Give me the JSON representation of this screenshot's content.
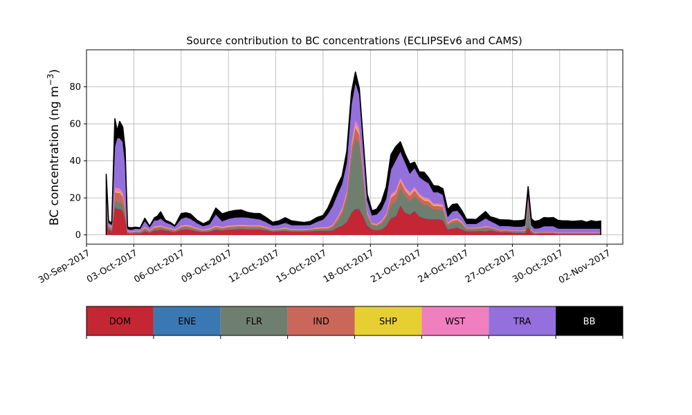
{
  "chart_data": {
    "type": "area",
    "stacked": true,
    "title": "Source contribution to BC concentrations (ECLIPSEv6 and CAMS)",
    "ylabel_main": "BC concentration (ng m",
    "ylabel_sup": "−3",
    "ylabel_close": ")",
    "xlabel": "",
    "grid": true,
    "xlim": [
      0,
      34
    ],
    "ylim": [
      -5,
      100
    ],
    "x_start_date": "30-Sep-2017",
    "xtick_values": [
      0,
      3,
      6,
      9,
      12,
      15,
      18,
      21,
      24,
      27,
      30,
      33
    ],
    "xtick_labels": [
      "30-Sep-2017",
      "03-Oct-2017",
      "06-Oct-2017",
      "09-Oct-2017",
      "12-Oct-2017",
      "15-Oct-2017",
      "18-Oct-2017",
      "21-Oct-2017",
      "24-Oct-2017",
      "27-Oct-2017",
      "30-Oct-2017",
      "02-Nov-2017"
    ],
    "ytick_values": [
      0,
      20,
      40,
      60,
      80
    ],
    "ytick_labels": [
      "0",
      "20",
      "40",
      "60",
      "80"
    ],
    "x": [
      1.25,
      1.4,
      1.6,
      1.8,
      1.95,
      2.1,
      2.3,
      2.45,
      2.6,
      2.75,
      2.9,
      3.1,
      3.4,
      3.7,
      4.0,
      4.3,
      4.5,
      4.7,
      5.0,
      5.3,
      5.6,
      6.0,
      6.3,
      6.6,
      7.0,
      7.4,
      7.8,
      8.2,
      8.6,
      9.0,
      9.4,
      9.8,
      10.2,
      10.6,
      11.0,
      11.4,
      11.8,
      12.2,
      12.6,
      13.0,
      13.4,
      13.8,
      14.2,
      14.6,
      15.0,
      15.3,
      15.6,
      15.9,
      16.2,
      16.5,
      16.8,
      17.05,
      17.3,
      17.55,
      17.8,
      18.1,
      18.4,
      18.7,
      19.0,
      19.3,
      19.6,
      19.9,
      20.2,
      20.5,
      20.8,
      21.1,
      21.4,
      21.7,
      22.0,
      22.3,
      22.6,
      22.9,
      23.2,
      23.5,
      23.8,
      24.1,
      24.4,
      24.7,
      25.0,
      25.3,
      25.6,
      25.9,
      26.2,
      26.5,
      26.8,
      27.1,
      27.4,
      27.6,
      27.8,
      28.0,
      28.2,
      28.4,
      28.7,
      29.0,
      29.3,
      29.6,
      29.9,
      30.2,
      30.5,
      30.8,
      31.1,
      31.4,
      31.7,
      32.0,
      32.3,
      32.6
    ],
    "series": [
      {
        "name": "DOM",
        "color": "#c42733",
        "values": [
          10,
          3,
          2,
          15,
          14,
          14,
          13,
          9,
          0.8,
          0.6,
          0.6,
          0.8,
          0.8,
          2,
          1.2,
          2.5,
          2.5,
          2.8,
          2.5,
          2,
          1.5,
          2.8,
          3,
          2.8,
          2,
          1.5,
          1.8,
          2.8,
          2.5,
          2.8,
          3,
          3.2,
          3,
          3,
          3,
          2.5,
          1.8,
          2,
          2.2,
          1.8,
          1.8,
          1.8,
          2,
          2.2,
          2.2,
          2.2,
          2.5,
          4,
          5,
          7,
          12,
          14,
          14,
          10,
          5,
          3,
          2.5,
          3,
          5,
          9,
          10,
          16,
          12,
          11,
          13,
          10,
          9,
          8.5,
          8.5,
          8.5,
          8,
          3,
          3.5,
          4,
          3,
          2,
          2,
          2,
          2.2,
          2,
          2.5,
          2,
          1.5,
          1.5,
          1.5,
          1.2,
          1.2,
          1.2,
          1,
          4.5,
          1.2,
          0.5,
          0.8,
          0.8,
          0.8,
          0.8,
          0.5,
          0.5,
          0.5,
          0.5,
          0.5,
          0.5,
          0.5,
          0.5,
          0.5,
          0.5
        ]
      },
      {
        "name": "ENE",
        "color": "#3a78b4",
        "values": [
          0.2,
          0.2,
          0.2,
          0.3,
          0.3,
          0.3,
          0.3,
          0.2,
          0.1,
          0.1,
          0.1,
          0.1,
          0.1,
          0.1,
          0.1,
          0.1,
          0.1,
          0.1,
          0.1,
          0.1,
          0.1,
          0.1,
          0.1,
          0.1,
          0.1,
          0.1,
          0.1,
          0.1,
          0.1,
          0.1,
          0.1,
          0.1,
          0.1,
          0.1,
          0.1,
          0.1,
          0.1,
          0.1,
          0.1,
          0.1,
          0.1,
          0.1,
          0.1,
          0.1,
          0.1,
          0.1,
          0.1,
          0.1,
          0.2,
          0.2,
          0.3,
          0.3,
          0.3,
          0.2,
          0.2,
          0.1,
          0.1,
          0.1,
          0.1,
          0.2,
          0.2,
          0.2,
          0.2,
          0.2,
          0.2,
          0.2,
          0.2,
          0.2,
          0.2,
          0.2,
          0.2,
          0.1,
          0.1,
          0.1,
          0.1,
          0.1,
          0.1,
          0.1,
          0.1,
          0.1,
          0.1,
          0.1,
          0.1,
          0.1,
          0.1,
          0.1,
          0.1,
          0.1,
          0.1,
          0.1,
          0.1,
          0.1,
          0.1,
          0.1,
          0.1,
          0.1,
          0.1,
          0.1,
          0.1,
          0.1,
          0.1,
          0.1,
          0.1,
          0.1,
          0.1,
          0.1
        ]
      },
      {
        "name": "FLR",
        "color": "#6f7f6f",
        "values": [
          8,
          1,
          1,
          3,
          3.5,
          3.5,
          3,
          2.5,
          0.5,
          0.5,
          0.5,
          0.6,
          0.5,
          1,
          0.5,
          0.8,
          0.8,
          1,
          0.6,
          0.6,
          0.5,
          0.8,
          1,
          0.8,
          0.6,
          0.5,
          0.6,
          0.8,
          0.6,
          0.8,
          0.8,
          0.8,
          0.8,
          0.8,
          0.8,
          0.6,
          0.5,
          0.5,
          0.6,
          0.5,
          0.5,
          0.5,
          0.5,
          0.6,
          0.8,
          0.8,
          1.5,
          3,
          6,
          12,
          30,
          38,
          35,
          20,
          5,
          2,
          2,
          3,
          4,
          7,
          8,
          9,
          9,
          7,
          8,
          8,
          7,
          7,
          5,
          5,
          5,
          2,
          3,
          3,
          2.5,
          1,
          1,
          1,
          1.2,
          1.5,
          1,
          0.8,
          0.5,
          0.6,
          0.5,
          0.5,
          0.5,
          0.5,
          1,
          12,
          1,
          0.3,
          0.3,
          0.3,
          0.3,
          0.3,
          0.3,
          0.3,
          0.3,
          0.3,
          0.3,
          0.3,
          0.3,
          0.3,
          0.3,
          0.3
        ]
      },
      {
        "name": "IND",
        "color": "#c8675a",
        "values": [
          2.5,
          0.8,
          0.8,
          5,
          5,
          5,
          4.5,
          3,
          0.5,
          0.5,
          0.5,
          0.5,
          0.5,
          0.8,
          0.5,
          0.8,
          0.8,
          0.8,
          0.6,
          0.6,
          0.5,
          0.8,
          0.8,
          0.8,
          0.6,
          0.5,
          0.5,
          0.8,
          0.6,
          0.8,
          0.8,
          0.8,
          0.8,
          0.8,
          0.8,
          0.6,
          0.5,
          0.5,
          0.6,
          0.5,
          0.5,
          0.5,
          0.5,
          0.6,
          0.6,
          0.6,
          0.8,
          1.5,
          2,
          3,
          5,
          6,
          5,
          3,
          1.5,
          0.8,
          0.8,
          1,
          1.5,
          4,
          4,
          4,
          3,
          3,
          3,
          2.5,
          2.5,
          2.5,
          2,
          2,
          2,
          1,
          1.2,
          1.2,
          1,
          0.5,
          0.5,
          0.5,
          0.5,
          0.8,
          0.5,
          0.5,
          0.4,
          0.4,
          0.4,
          0.4,
          0.4,
          0.4,
          0.5,
          2,
          0.5,
          0.2,
          0.2,
          0.2,
          0.2,
          0.2,
          0.2,
          0.2,
          0.2,
          0.2,
          0.2,
          0.2,
          0.2,
          0.2,
          0.2,
          0.2
        ]
      },
      {
        "name": "SHP",
        "color": "#e6cf30",
        "values": [
          0.3,
          0.2,
          0.2,
          0.5,
          0.5,
          0.5,
          0.5,
          0.3,
          0.1,
          0.1,
          0.1,
          0.1,
          0.1,
          0.2,
          0.1,
          0.2,
          0.2,
          0.2,
          0.2,
          0.2,
          0.1,
          0.2,
          0.2,
          0.2,
          0.2,
          0.1,
          0.2,
          0.2,
          0.2,
          0.2,
          0.2,
          0.2,
          0.2,
          0.2,
          0.2,
          0.2,
          0.1,
          0.1,
          0.2,
          0.1,
          0.1,
          0.1,
          0.1,
          0.2,
          0.2,
          0.2,
          0.2,
          0.3,
          0.4,
          0.5,
          0.8,
          1,
          1,
          0.5,
          0.3,
          0.2,
          0.2,
          0.2,
          0.3,
          0.5,
          0.5,
          0.5,
          0.5,
          0.5,
          0.5,
          0.5,
          0.5,
          0.5,
          0.4,
          0.4,
          0.4,
          0.2,
          0.3,
          0.3,
          0.2,
          0.1,
          0.1,
          0.1,
          0.1,
          0.2,
          0.1,
          0.1,
          0.1,
          0.1,
          0.1,
          0.1,
          0.1,
          0.1,
          0.2,
          0.5,
          0.2,
          0.1,
          0.1,
          0.1,
          0.1,
          0.1,
          0.1,
          0.1,
          0.1,
          0.1,
          0.1,
          0.1,
          0.1,
          0.1,
          0.1,
          0.1
        ]
      },
      {
        "name": "WST",
        "color": "#f07fbf",
        "values": [
          0.8,
          0.3,
          0.3,
          2,
          2,
          2,
          2,
          1.5,
          0.3,
          0.3,
          0.3,
          0.3,
          0.3,
          0.5,
          0.3,
          0.5,
          0.5,
          0.5,
          0.4,
          0.4,
          0.3,
          0.5,
          0.5,
          0.5,
          0.4,
          0.3,
          0.4,
          0.5,
          0.4,
          0.5,
          0.5,
          0.5,
          0.5,
          0.5,
          0.5,
          0.4,
          0.3,
          0.3,
          0.4,
          0.3,
          0.3,
          0.3,
          0.3,
          0.4,
          0.4,
          0.4,
          0.5,
          0.8,
          1,
          1.5,
          2.5,
          3,
          2.5,
          1.5,
          0.8,
          0.5,
          0.5,
          0.6,
          0.8,
          1.5,
          1.5,
          1.5,
          1.5,
          1.5,
          1.5,
          1.2,
          1.2,
          1.2,
          1,
          1,
          1,
          0.5,
          0.6,
          0.6,
          0.5,
          0.3,
          0.3,
          0.3,
          0.3,
          0.4,
          0.3,
          0.3,
          0.2,
          0.2,
          0.2,
          0.2,
          0.2,
          0.2,
          0.3,
          1,
          0.3,
          0.2,
          0.2,
          0.2,
          0.2,
          0.2,
          0.2,
          0.2,
          0.2,
          0.2,
          0.2,
          0.2,
          0.2,
          0.2,
          0.2,
          0.2
        ]
      },
      {
        "name": "TRA",
        "color": "#9370db",
        "values": [
          3,
          1,
          1,
          22,
          27,
          27,
          27,
          22,
          1,
          0.8,
          0.8,
          1,
          1,
          3,
          1.5,
          3,
          3,
          3.5,
          2.5,
          2,
          1.5,
          3.5,
          4,
          3.5,
          2.5,
          1.8,
          2.2,
          6,
          3,
          3.5,
          4,
          4,
          4,
          3.5,
          3,
          2.5,
          1.8,
          2,
          2.5,
          2,
          2,
          2,
          2,
          3,
          4,
          7,
          10,
          12,
          13,
          15,
          20,
          20,
          18,
          12,
          6,
          4,
          5,
          6,
          8,
          13,
          16,
          14,
          13,
          10,
          10,
          9,
          9,
          8,
          6,
          6,
          5,
          3,
          4,
          4,
          3,
          2,
          2,
          2,
          3,
          4,
          3,
          2.5,
          2,
          2,
          2,
          2,
          2,
          2,
          2,
          2,
          2,
          2,
          2,
          3,
          3,
          3,
          2,
          2,
          2,
          2,
          2,
          2,
          2,
          2,
          2,
          2
        ]
      },
      {
        "name": "BB",
        "color": "#000000",
        "values": [
          8,
          1,
          1,
          15,
          4,
          9,
          8,
          8,
          1,
          1,
          1,
          0.8,
          0.5,
          1.4,
          0.5,
          1.3,
          2.3,
          3.6,
          1,
          1,
          0.5,
          2.8,
          2.4,
          2.6,
          1.6,
          1.2,
          1.9,
          3.3,
          4,
          3.8,
          3.8,
          3.9,
          2.8,
          2.7,
          3.1,
          2.4,
          1.7,
          2.1,
          2.7,
          2.3,
          1.8,
          1.4,
          1.8,
          2.3,
          2.2,
          3.2,
          4.7,
          4.9,
          4.2,
          5.9,
          6.5,
          5.7,
          3.4,
          3.3,
          3.2,
          2.4,
          2.9,
          4.1,
          6.2,
          8.1,
          7.5,
          5.1,
          4.5,
          5.1,
          3.1,
          2.6,
          4.5,
          2.9,
          3.5,
          3.3,
          3.3,
          3.8,
          3.7,
          3.6,
          2.8,
          2.4,
          2.5,
          2.3,
          3.1,
          3.6,
          2.3,
          2.8,
          3.4,
          3.2,
          3.2,
          3.1,
          3.2,
          3.3,
          3.3,
          4,
          3.4,
          3.9,
          4.1,
          4.7,
          4.5,
          4.7,
          4.4,
          4.2,
          4.2,
          3.9,
          4.1,
          4.3,
          3.5,
          4.3,
          3.8,
          4.1
        ]
      }
    ]
  }
}
